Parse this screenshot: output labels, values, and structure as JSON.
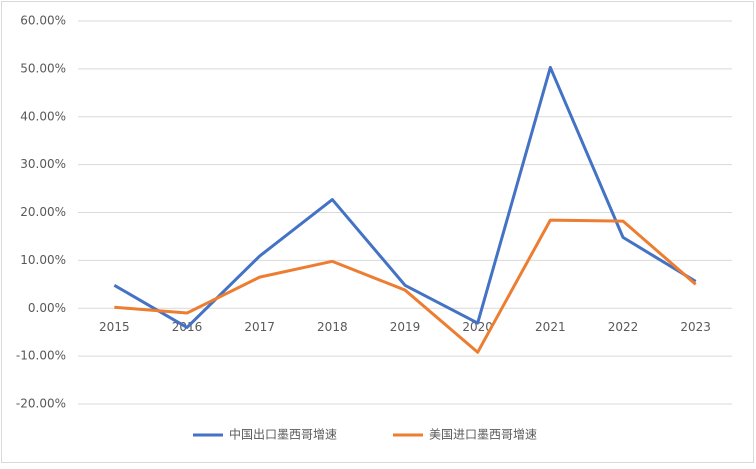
{
  "chart_data": {
    "type": "line",
    "categories": [
      "2015",
      "2016",
      "2017",
      "2018",
      "2019",
      "2020",
      "2021",
      "2022",
      "2023"
    ],
    "series": [
      {
        "name": "中国出口墨西哥增速",
        "color": "#4472c4",
        "values": [
          4.8,
          -4.0,
          10.9,
          22.7,
          4.8,
          -3.1,
          50.3,
          14.8,
          5.6
        ]
      },
      {
        "name": "美国进口墨西哥增速",
        "color": "#ed7d31",
        "values": [
          0.2,
          -1.0,
          6.5,
          9.8,
          3.8,
          -9.2,
          18.4,
          18.2,
          5.0
        ]
      }
    ],
    "ylim": [
      -20,
      60
    ],
    "yticks": [
      {
        "value": -20,
        "label": "-20.00%"
      },
      {
        "value": -10,
        "label": "-10.00%"
      },
      {
        "value": 0,
        "label": "0.00%"
      },
      {
        "value": 10,
        "label": "10.00%"
      },
      {
        "value": 20,
        "label": "20.00%"
      },
      {
        "value": 30,
        "label": "30.00%"
      },
      {
        "value": 40,
        "label": "40.00%"
      },
      {
        "value": 50,
        "label": "50.00%"
      },
      {
        "value": 60,
        "label": "60.00%"
      }
    ],
    "grid": true,
    "legend": "bottom"
  }
}
